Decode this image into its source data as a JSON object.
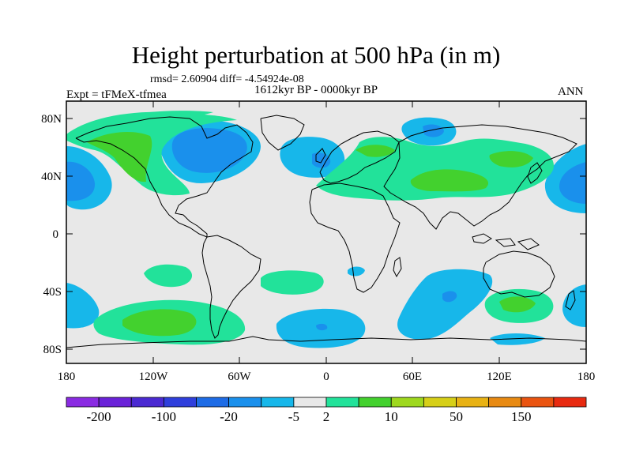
{
  "title": "Height perturbation at 500 hPa (in m)",
  "stats": "rmsd= 2.60904 diff= -4.54924e-08",
  "period": "1612kyr BP - 0000kyr BP",
  "experiment": "Expt = tFMeX-tfmea",
  "season": "ANN",
  "y_ticks": [
    "80N",
    "40N",
    "0",
    "40S",
    "80S"
  ],
  "x_ticks": [
    "180",
    "120W",
    "60W",
    "0",
    "60E",
    "120E",
    "180"
  ],
  "colorbar": {
    "labels": [
      "-200",
      "-100",
      "-20",
      "-5",
      "2",
      "10",
      "50",
      "150"
    ],
    "colors": [
      "#8a2be2",
      "#6a22d8",
      "#4b2ad2",
      "#2f3fdc",
      "#1e6ce6",
      "#1a90ec",
      "#17b7ea",
      "#e8e8e8",
      "#22e29a",
      "#43d12e",
      "#9ed81e",
      "#d6cf18",
      "#e8b214",
      "#e88a12",
      "#ea5410",
      "#e82a10"
    ]
  },
  "map_colors": {
    "ocean": "#e8e8e8",
    "light_blue": "#17b7ea",
    "blue": "#1a90ec",
    "dark_blue": "#1e6ce6",
    "light_green": "#22e29a",
    "green": "#43d12e"
  }
}
